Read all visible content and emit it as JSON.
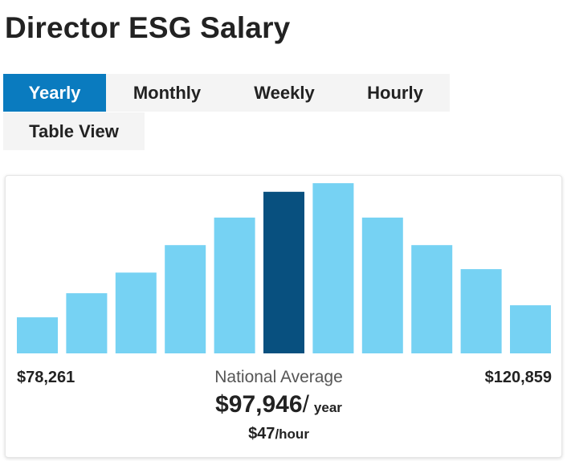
{
  "page": {
    "title": "Director ESG Salary"
  },
  "tabs": [
    {
      "label": "Yearly",
      "active": true
    },
    {
      "label": "Monthly",
      "active": false
    },
    {
      "label": "Weekly",
      "active": false
    },
    {
      "label": "Hourly",
      "active": false
    },
    {
      "label": "Table View",
      "active": false
    }
  ],
  "summary": {
    "range_low": "$78,261",
    "range_high": "$120,859",
    "avg_label": "National Average",
    "avg_amount": "$97,946",
    "avg_slash": "/",
    "avg_unit": "year",
    "hourly_amount": "$47",
    "hourly_unit": "/hour"
  },
  "colors": {
    "accent": "#0a7bbf",
    "bar": "#76d2f3",
    "bar_highlight": "#08507f"
  },
  "chart_data": {
    "type": "bar",
    "values": [
      21,
      35,
      47,
      63,
      79,
      94,
      99,
      79,
      63,
      49,
      28
    ],
    "highlight_index": 5,
    "ylim": [
      0,
      100
    ]
  }
}
